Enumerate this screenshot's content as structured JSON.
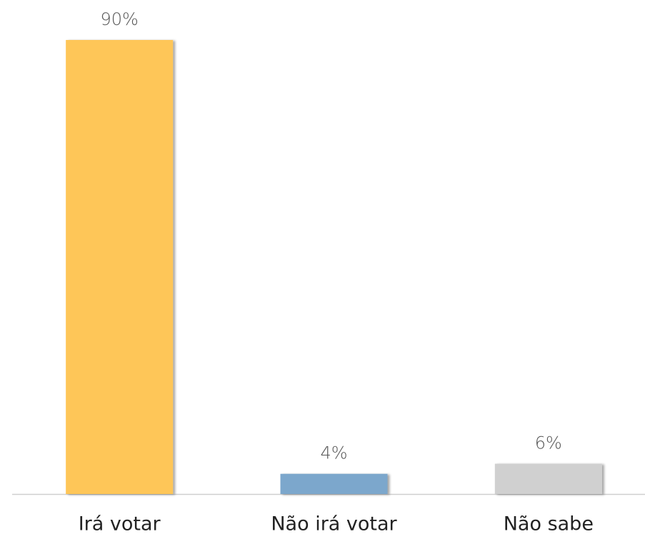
{
  "chart_data": {
    "type": "bar",
    "categories": [
      "Irá votar",
      "Não irá votar",
      "Não sabe"
    ],
    "values": [
      90,
      4,
      6
    ],
    "value_labels": [
      "90%",
      "4%",
      "6%"
    ],
    "colors": [
      "#fec659",
      "#7ba7cc",
      "#d0d0d0"
    ]
  }
}
